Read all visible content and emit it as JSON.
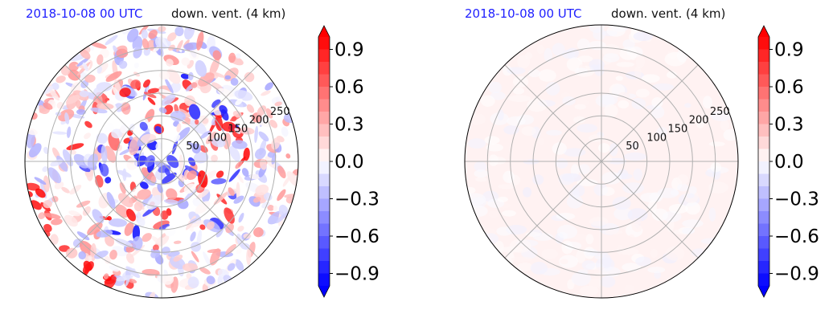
{
  "figure": {
    "panels": [
      {
        "date_label": "2018-10-08 00 UTC",
        "var_label": "down. vent. (4 km)"
      },
      {
        "date_label": "2018-10-08 00 UTC",
        "var_label": "down. vent. (4 km)"
      }
    ]
  },
  "chart_data": [
    {
      "type": "heatmap",
      "projection": "polar",
      "title_left": "2018-10-08 00 UTC",
      "title_right": "down. vent. (4 km)",
      "radial_ticks": [
        "50",
        "100",
        "150",
        "200",
        "250"
      ],
      "radial_values": [
        50,
        100,
        150,
        200,
        250
      ],
      "colorbar": {
        "ticks": [
          "0.9",
          "0.6",
          "0.3",
          "0.0",
          "−0.3",
          "−0.6",
          "−0.9"
        ],
        "tick_values": [
          0.9,
          0.6,
          0.3,
          0.0,
          -0.3,
          -0.6,
          -0.9
        ],
        "range": [
          -1.0,
          1.0
        ],
        "extend": "both",
        "colormap": "bwr"
      },
      "grid": true,
      "field_amplitude": "strong"
    },
    {
      "type": "heatmap",
      "projection": "polar",
      "title_left": "2018-10-08 00 UTC",
      "title_right": "down. vent. (4 km)",
      "radial_ticks": [
        "50",
        "100",
        "150",
        "200",
        "250"
      ],
      "radial_values": [
        50,
        100,
        150,
        200,
        250
      ],
      "colorbar": {
        "ticks": [
          "0.9",
          "0.6",
          "0.3",
          "0.0",
          "−0.3",
          "−0.6",
          "−0.9"
        ],
        "tick_values": [
          0.9,
          0.6,
          0.3,
          0.0,
          -0.3,
          -0.6,
          -0.9
        ],
        "range": [
          -1.0,
          1.0
        ],
        "extend": "both",
        "colormap": "bwr"
      },
      "grid": true,
      "field_amplitude": "weak"
    }
  ]
}
